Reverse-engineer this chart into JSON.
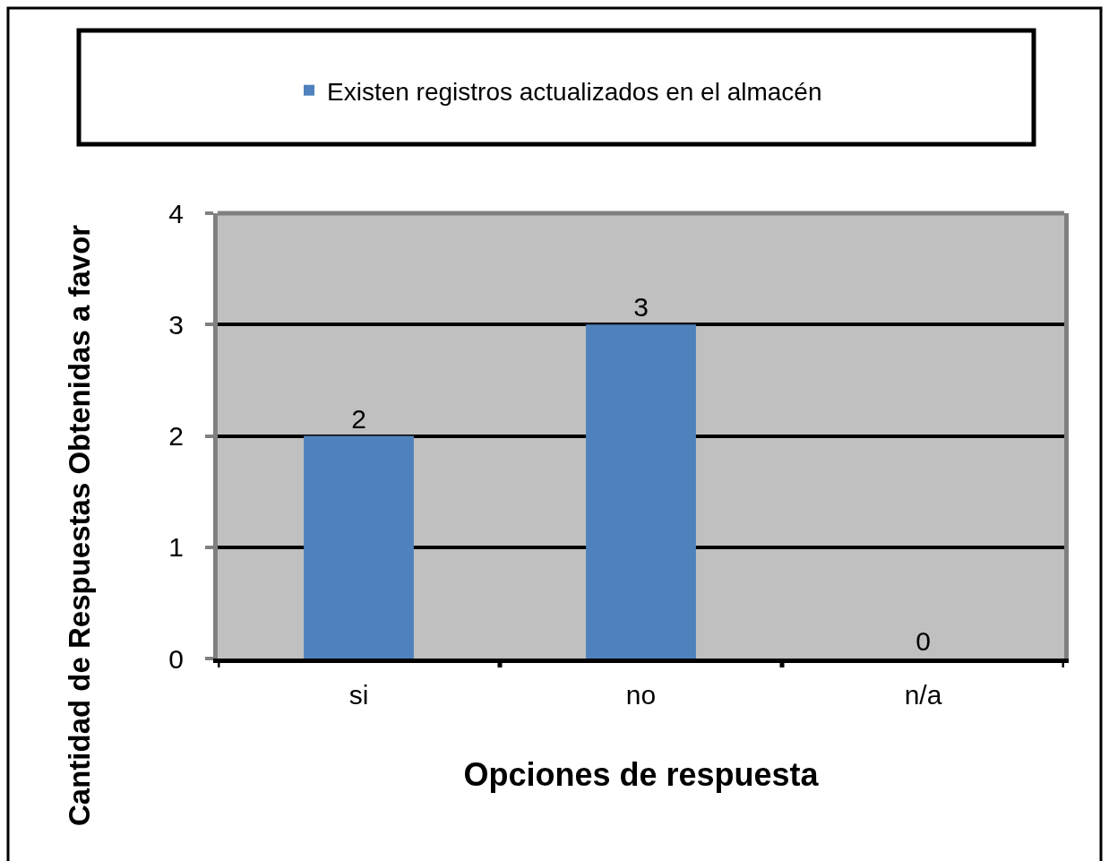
{
  "chart_data": {
    "type": "bar",
    "xlabel": "Opciones de respuesta",
    "ylabel": "Cantidad de Respuestas Obtenidas a favor",
    "categories": [
      "si",
      "no",
      "n/a"
    ],
    "series": [
      {
        "name": "Existen registros actualizados en el almacén",
        "color": "#4f81bd",
        "values": [
          2,
          3,
          0
        ]
      }
    ],
    "ylim": [
      0,
      4
    ],
    "yticks": [
      0,
      1,
      2,
      3,
      4
    ],
    "grid": "y",
    "legend": "top",
    "data_labels": true
  }
}
